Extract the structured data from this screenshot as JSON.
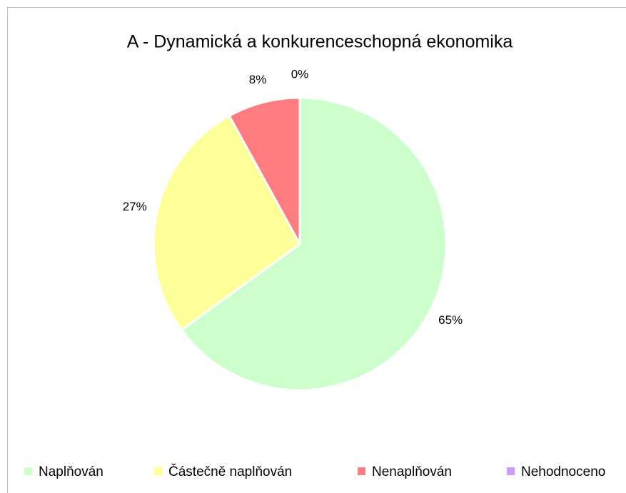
{
  "chart_data": {
    "type": "pie",
    "title": "A - Dynamická a konkurenceschopná ekonomika",
    "categories": [
      "Naplňován",
      "Částečně naplňován",
      "Nenaplňován",
      "Nehodnoceno"
    ],
    "values": [
      65,
      27,
      8,
      0
    ],
    "value_labels": [
      "65%",
      "27%",
      "8%",
      "0%"
    ],
    "colors": [
      "#ccffcc",
      "#ffff99",
      "#ff7c80",
      "#cc99ff"
    ],
    "legend": "bottom"
  }
}
